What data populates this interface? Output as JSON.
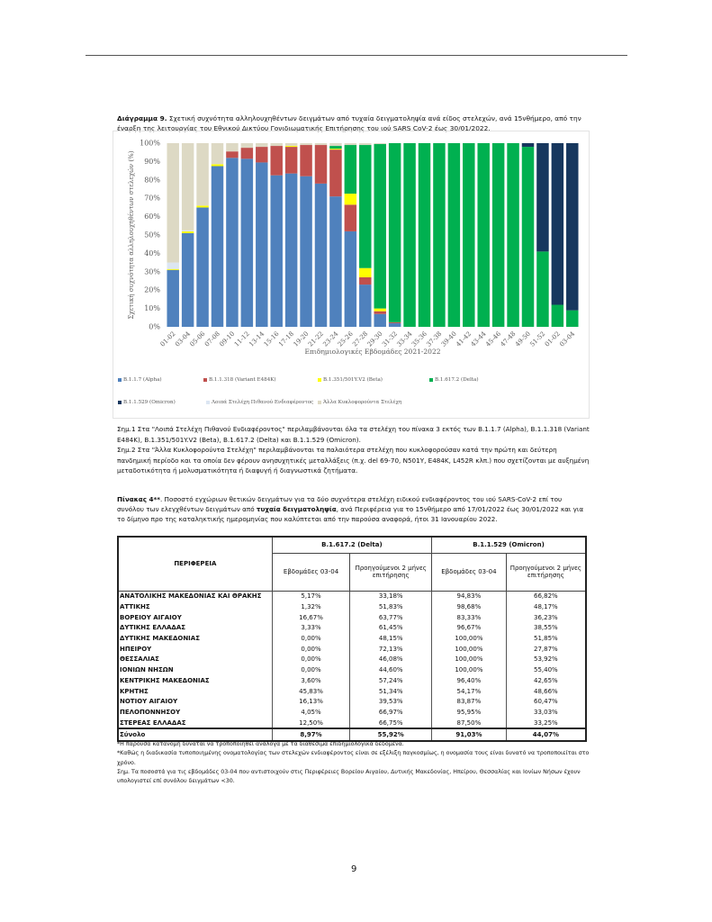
{
  "figure": {
    "caption_label": "Διάγραμμα 9.",
    "caption_text": " Σχετική συχνότητα αλληλουχηθέντων δειγμάτων από τυχαία δειγματοληψία ανά είδος στελεχών, ανά 15νθήμερο, από την έναρξη της λειτουργίας του Εθνικού Δικτύου Γονιδιωματικής Επιτήρησης του ιού SARS CoV-2 έως 30/01/2022."
  },
  "chart_data": {
    "type": "bar",
    "stacked": true,
    "xlabel": "Επιδημιολογικές Εβδομάδες 2021-2022",
    "ylabel": "Σχετική συχνότητα αλληλουχηθέντων στελεχών (%)",
    "ylim": [
      0,
      100
    ],
    "yticks": [
      "0%",
      "10%",
      "20%",
      "30%",
      "40%",
      "50%",
      "60%",
      "70%",
      "80%",
      "90%",
      "100%"
    ],
    "legend_position": "bottom",
    "categories": [
      "01-02",
      "03-04",
      "05-06",
      "07-08",
      "09-10",
      "11-12",
      "13-14",
      "15-16",
      "17-18",
      "19-20",
      "21-22",
      "23-24",
      "25-26",
      "27-28",
      "29-30",
      "31-32",
      "33-34",
      "35-36",
      "37-38",
      "39-40",
      "41-42",
      "43-44",
      "45-46",
      "47-48",
      "49-50",
      "51-52",
      "01-02",
      "03-04"
    ],
    "series": [
      {
        "name": "B.1.1.7 (Alpha)",
        "color": "#4f81bd",
        "values": [
          31,
          51,
          65,
          87.5,
          92,
          91.5,
          89.5,
          82.5,
          83.5,
          82,
          78,
          71,
          52,
          23,
          7,
          2,
          0,
          0,
          0,
          0,
          0,
          0,
          0,
          0,
          0,
          0,
          0,
          0
        ]
      },
      {
        "name": "B.1.1.318 (Variant E484K)",
        "color": "#c0504d",
        "values": [
          0,
          0,
          0,
          0,
          3.5,
          6,
          8.5,
          16,
          14.5,
          17,
          21,
          25.5,
          14.5,
          4,
          1.5,
          0.5,
          0,
          0,
          0,
          0,
          0,
          0,
          0,
          0,
          0,
          0,
          0,
          0
        ]
      },
      {
        "name": "B.1.351/501Y.V2 (Beta)",
        "color": "#ffff00",
        "values": [
          0.5,
          1,
          1,
          1,
          0,
          0,
          0,
          0,
          0.5,
          0,
          0,
          0.5,
          6,
          5,
          1.5,
          0,
          0,
          0,
          0,
          0,
          0,
          0,
          0,
          0,
          0,
          0,
          0,
          0
        ]
      },
      {
        "name": "B.1.617.2 (Delta)",
        "color": "#00b050",
        "values": [
          0,
          0,
          0,
          0,
          0,
          0,
          0,
          0,
          0,
          0,
          0,
          1.5,
          26.5,
          67,
          89.5,
          97.5,
          100,
          100,
          100,
          100,
          100,
          100,
          100,
          100,
          98,
          41,
          12,
          9
        ]
      },
      {
        "name": "B.1.1.529 (Omicron)",
        "color": "#17375e",
        "values": [
          0,
          0,
          0,
          0,
          0,
          0,
          0,
          0,
          0,
          0,
          0,
          0,
          0,
          0,
          0,
          0,
          0,
          0,
          0,
          0,
          0,
          0,
          0,
          0,
          2,
          59,
          88,
          91
        ]
      },
      {
        "name": "Λοιπά Στελέχη Πιθανού Ενδιαφέροντος",
        "color": "#dce6f2",
        "values": [
          3.5,
          0.5,
          0,
          0,
          0,
          0,
          0,
          0,
          0,
          0,
          0,
          0,
          0,
          0,
          0,
          0,
          0,
          0,
          0,
          0,
          0,
          0,
          0,
          0,
          0,
          0,
          0,
          0
        ]
      },
      {
        "name": "Άλλα Κυκλοφορούντα Στελέχη",
        "color": "#ddd9c4",
        "values": [
          65,
          47.5,
          34,
          11.5,
          4.5,
          2.5,
          2,
          1.5,
          1.5,
          1,
          1,
          1.5,
          1,
          1,
          0.5,
          0,
          0,
          0,
          0,
          0,
          0,
          0,
          0,
          0,
          0,
          0,
          0,
          0
        ]
      }
    ]
  },
  "notes": {
    "note1": "Σημ.1 Στα \"Λοιπά Στελέχη Πιθανού Ενδιαφέροντος\" περιλαμβάνονται όλα τα στελέχη του πίνακα 3 εκτός των B.1.1.7 (Alpha), B.1.1.318 (Variant E484K), B.1.351/501Y.V2 (Beta), B.1.617.2 (Delta) και B.1.1.529 (Omicron).",
    "note2": "Σημ.2 Στα \"Άλλα Κυκλοφορούντα Στελέχη\" περιλαμβάνονται τα παλαιότερα στελέχη που κυκλοφορούσαν κατά την πρώτη και δεύτερη πανδημική περίοδο και τα οποία δεν φέρουν ανησυχητικές μεταλλάξεις (π.χ. del 69-70, N501Y, E484K, L452R κλπ.) που σχετίζονται με αυξημένη μεταδοτικότητα ή μολυσματικότητα ή διαφυγή ή διαγνωστικά ζητήματα."
  },
  "table_caption": {
    "label": "Πίνακας 4**",
    "text1": ". Ποσοστό εγχώριων θετικών δειγμάτων για τα δύο συχνότερα στελέχη ειδικού ενδιαφέροντος του ιού SARS-CoV-2 επί του συνόλου των ελεγχθέντων δειγμάτων από ",
    "bold": "τυχαία δειγματοληψία",
    "text2": ", ανά Περιφέρεια για το 15νθήμερο από 17/01/2022 έως 30/01/2022 και για το δίμηνο προ της καταληκτικής ημερομηνίας που καλύπτεται από την παρούσα αναφορά, ήτοι 31 Ιανουαρίου 2022."
  },
  "table": {
    "region_header": "ΠΕΡΙΦΕΡΕΙΑ",
    "groups": [
      "B.1.617.2 (Delta)",
      "B.1.1.529 (Omicron)"
    ],
    "subheaders": [
      "Εβδομάδες 03-04",
      "Προηγούμενοι 2 μήνες επιτήρησης",
      "Εβδομάδες 03-04",
      "Προηγούμενοι 2 μήνες επιτήρησης"
    ],
    "rows": [
      [
        "ΑΝΑΤΟΛΙΚΗΣ ΜΑΚΕΔΟΝΙΑΣ ΚΑΙ ΘΡΑΚΗΣ",
        "5,17%",
        "33,18%",
        "94,83%",
        "66,82%"
      ],
      [
        "ΑΤΤΙΚΗΣ",
        "1,32%",
        "51,83%",
        "98,68%",
        "48,17%"
      ],
      [
        "ΒΟΡΕΙΟΥ ΑΙΓΑΙΟΥ",
        "16,67%",
        "63,77%",
        "83,33%",
        "36,23%"
      ],
      [
        "ΔΥΤΙΚΗΣ ΕΛΛΑΔΑΣ",
        "3,33%",
        "61,45%",
        "96,67%",
        "38,55%"
      ],
      [
        "ΔΥΤΙΚΗΣ ΜΑΚΕΔΟΝΙΑΣ",
        "0,00%",
        "48,15%",
        "100,00%",
        "51,85%"
      ],
      [
        "ΗΠΕΙΡΟΥ",
        "0,00%",
        "72,13%",
        "100,00%",
        "27,87%"
      ],
      [
        "ΘΕΣΣΑΛΙΑΣ",
        "0,00%",
        "46,08%",
        "100,00%",
        "53,92%"
      ],
      [
        "ΙΟΝΙΩΝ ΝΗΣΩΝ",
        "0,00%",
        "44,60%",
        "100,00%",
        "55,40%"
      ],
      [
        "ΚΕΝΤΡΙΚΗΣ ΜΑΚΕΔΟΝΙΑΣ",
        "3,60%",
        "57,24%",
        "96,40%",
        "42,65%"
      ],
      [
        "ΚΡΗΤΗΣ",
        "45,83%",
        "51,34%",
        "54,17%",
        "48,66%"
      ],
      [
        "ΝΟΤΙΟΥ ΑΙΓΑΙΟΥ",
        "16,13%",
        "39,53%",
        "83,87%",
        "60,47%"
      ],
      [
        "ΠΕΛΟΠΟΝΝΗΣΟΥ",
        "4,05%",
        "66,97%",
        "95,95%",
        "33,03%"
      ],
      [
        "ΣΤΕΡΕΑΣ ΕΛΛΑΔΑΣ",
        "12,50%",
        "66,75%",
        "87,50%",
        "33,25%"
      ]
    ],
    "total": [
      "Σύνολο",
      "8,97%",
      "55,92%",
      "91,03%",
      "44,07%"
    ]
  },
  "footnotes": [
    "*Η παρούσα κατανομή δύναται να τροποποιηθεί ανάλογα με τα διαθέσιμα επιδημιολογικά δεδομένα.",
    "*Καθώς η διαδικασία τυποποιημένης ονοματολογίας των στελεχών ενδιαφέροντος είναι σε εξέλιξη παγκοσμίως, η ονομασία τους είναι δυνατό να τροποποιείται στο χρόνο.",
    "Σημ. Τα ποσοστά για τις εβδομάδες 03-04 που αντιστοιχούν στις Περιφέρειες Βορείου Αιγαίου, Δυτικής Μακεδονίας, Ηπείρου, Θεσσαλίας και Ιονίων Νήσων έχουν υπολογιστεί επί συνόλου δειγμάτων <30."
  ],
  "page_number": "9"
}
